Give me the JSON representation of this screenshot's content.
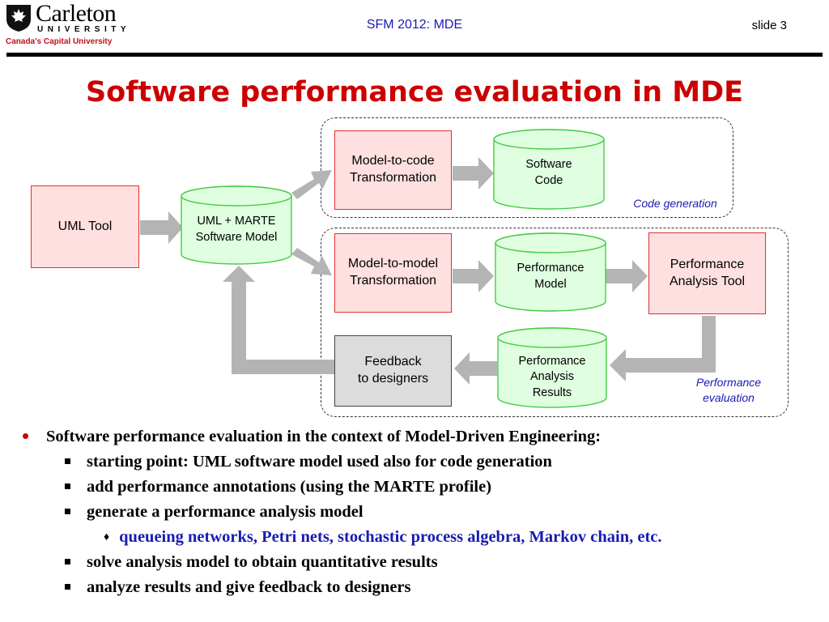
{
  "header": {
    "logo": {
      "name": "Carleton",
      "university": "UNIVERSITY",
      "tagline": "Canada's Capital University"
    },
    "center_text": "SFM 2012: MDE",
    "slide_number": "slide 3"
  },
  "title": "Software performance evaluation in MDE",
  "diagram": {
    "uml_tool": "UML Tool",
    "uml_model": [
      "UML + MARTE",
      "Software Model"
    ],
    "m2c": [
      "Model-to-code",
      "Transformation"
    ],
    "software_code": [
      "Software",
      "Code"
    ],
    "code_generation_caption": "Code generation",
    "m2m": [
      "Model-to-model",
      "Transformation"
    ],
    "perf_model": [
      "Performance",
      "Model"
    ],
    "perf_tool": [
      "Performance",
      "Analysis Tool"
    ],
    "perf_results": [
      "Performance",
      "Analysis",
      "Results"
    ],
    "feedback": [
      "Feedback",
      "to designers"
    ],
    "perf_eval_caption": [
      "Performance",
      "evaluation"
    ],
    "colors": {
      "process_fill": "#ffe0e0",
      "process_border": "#e03030",
      "store_fill": "#e0ffe0",
      "store_border": "#44cc44",
      "arrow": "#b4b4b4"
    }
  },
  "bullets": {
    "main": "Software performance evaluation in the context of Model-Driven Engineering:",
    "sub": [
      "starting point: UML software model used also for code generation",
      "add performance annotations (using the MARTE profile)",
      "generate a performance analysis model"
    ],
    "subsub": "queueing networks, Petri nets, stochastic process algebra, Markov chain, etc.",
    "sub2": [
      "solve analysis model to obtain quantitative results",
      "analyze results and give feedback to designers"
    ]
  }
}
